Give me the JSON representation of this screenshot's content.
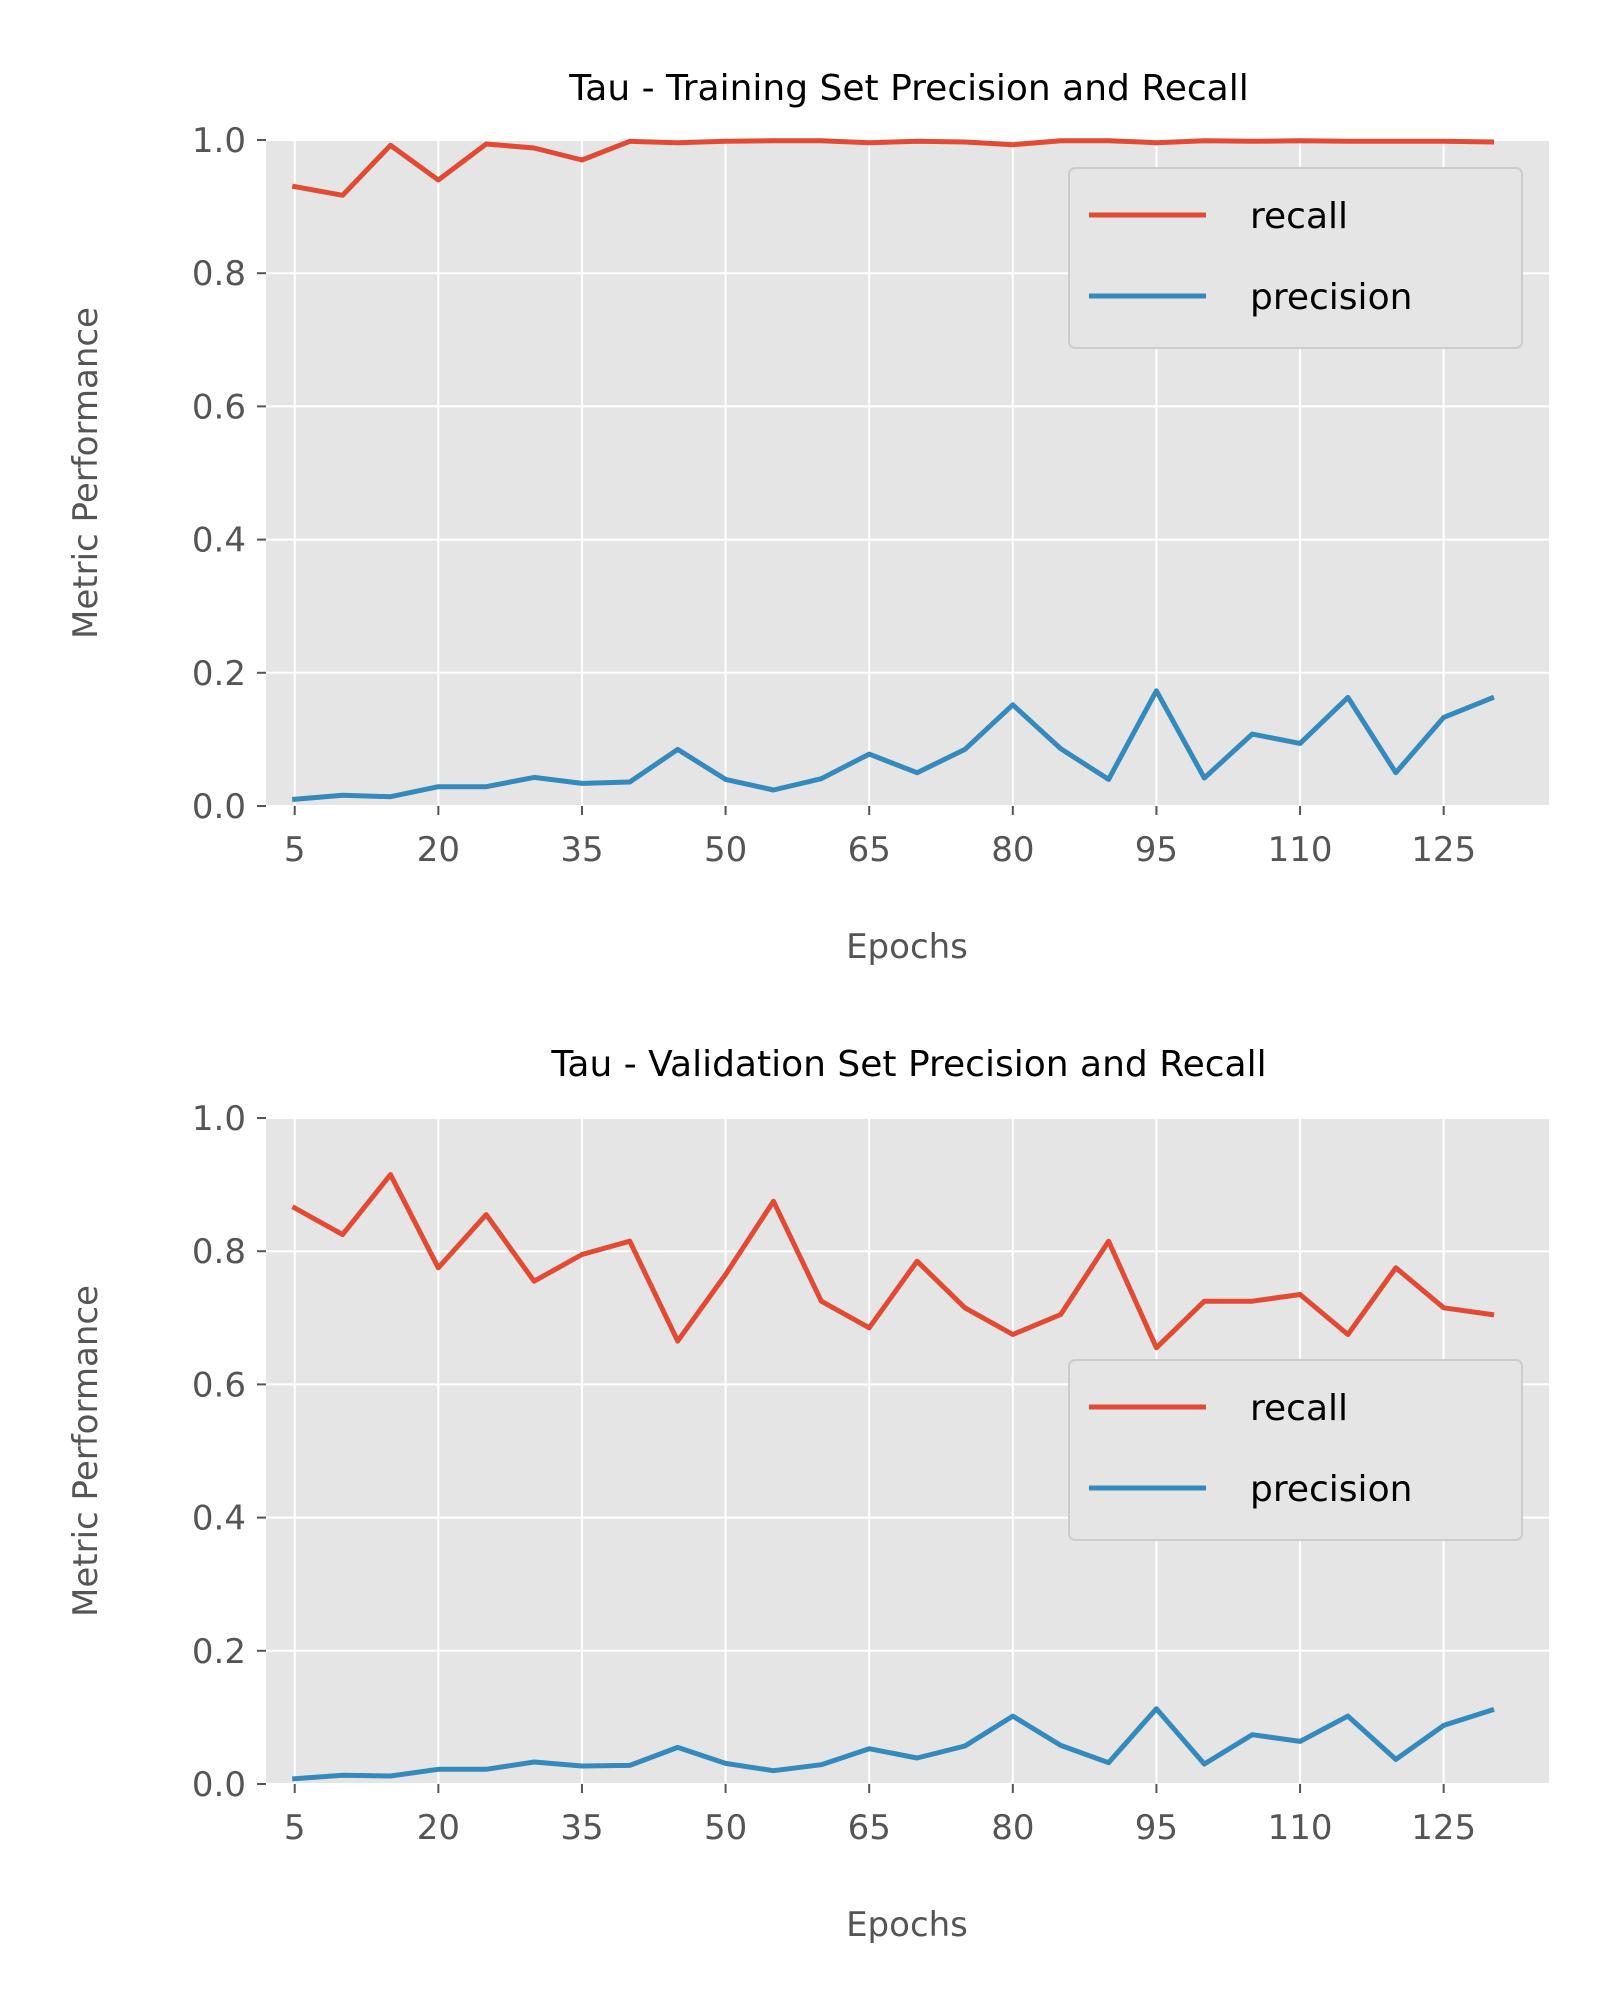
{
  "chart_data": [
    {
      "type": "line",
      "title": "Tau - Training Set Precision and Recall",
      "xlabel": "Epochs",
      "ylabel": "Metric Performance",
      "xlim": [
        2,
        136
      ],
      "ylim": [
        0.0,
        1.0
      ],
      "x_ticks": [
        5,
        20,
        35,
        50,
        65,
        80,
        95,
        110,
        125
      ],
      "y_ticks": [
        0.0,
        0.2,
        0.4,
        0.6,
        0.8,
        1.0
      ],
      "y_tick_labels": [
        "0.0",
        "0.2",
        "0.4",
        "0.6",
        "0.8",
        "1.0"
      ],
      "grid": true,
      "legend_position": "top-right",
      "x": [
        5,
        10,
        15,
        20,
        25,
        30,
        35,
        40,
        45,
        50,
        55,
        60,
        65,
        70,
        75,
        80,
        85,
        90,
        95,
        100,
        105,
        110,
        115,
        120,
        125,
        130
      ],
      "series": [
        {
          "name": "recall",
          "color": "#E24A33",
          "values": [
            0.93,
            0.917,
            0.992,
            0.94,
            0.994,
            0.988,
            0.97,
            0.998,
            0.996,
            0.998,
            0.999,
            0.999,
            0.996,
            0.998,
            0.997,
            0.993,
            0.999,
            0.999,
            0.996,
            0.999,
            0.998,
            0.999,
            0.998,
            0.998,
            0.998,
            0.997
          ]
        },
        {
          "name": "precision",
          "color": "#348ABD",
          "values": [
            0.01,
            0.016,
            0.014,
            0.029,
            0.029,
            0.043,
            0.034,
            0.036,
            0.085,
            0.04,
            0.024,
            0.041,
            0.078,
            0.05,
            0.085,
            0.152,
            0.086,
            0.04,
            0.173,
            0.042,
            0.108,
            0.094,
            0.163,
            0.05,
            0.133,
            0.162
          ]
        }
      ]
    },
    {
      "type": "line",
      "title": "Tau - Validation Set Precision and Recall",
      "xlabel": "Epochs",
      "ylabel": "Metric Performance",
      "xlim": [
        2,
        136
      ],
      "ylim": [
        0.0,
        1.0
      ],
      "x_ticks": [
        5,
        20,
        35,
        50,
        65,
        80,
        95,
        110,
        125
      ],
      "y_ticks": [
        0.0,
        0.2,
        0.4,
        0.6,
        0.8,
        1.0
      ],
      "y_tick_labels": [
        "0.0",
        "0.2",
        "0.4",
        "0.6",
        "0.8",
        "1.0"
      ],
      "grid": true,
      "legend_position": "center-right",
      "x": [
        5,
        10,
        15,
        20,
        25,
        30,
        35,
        40,
        45,
        50,
        55,
        60,
        65,
        70,
        75,
        80,
        85,
        90,
        95,
        100,
        105,
        110,
        115,
        120,
        125,
        130
      ],
      "series": [
        {
          "name": "recall",
          "color": "#E24A33",
          "values": [
            0.865,
            0.825,
            0.915,
            0.775,
            0.855,
            0.755,
            0.795,
            0.815,
            0.665,
            0.765,
            0.875,
            0.725,
            0.685,
            0.785,
            0.715,
            0.675,
            0.705,
            0.815,
            0.655,
            0.725,
            0.725,
            0.735,
            0.675,
            0.775,
            0.715,
            0.705
          ]
        },
        {
          "name": "precision",
          "color": "#348ABD",
          "values": [
            0.008,
            0.013,
            0.012,
            0.022,
            0.022,
            0.033,
            0.027,
            0.028,
            0.055,
            0.031,
            0.02,
            0.029,
            0.053,
            0.039,
            0.057,
            0.102,
            0.058,
            0.032,
            0.113,
            0.03,
            0.074,
            0.064,
            0.102,
            0.037,
            0.088,
            0.111
          ]
        }
      ]
    }
  ]
}
